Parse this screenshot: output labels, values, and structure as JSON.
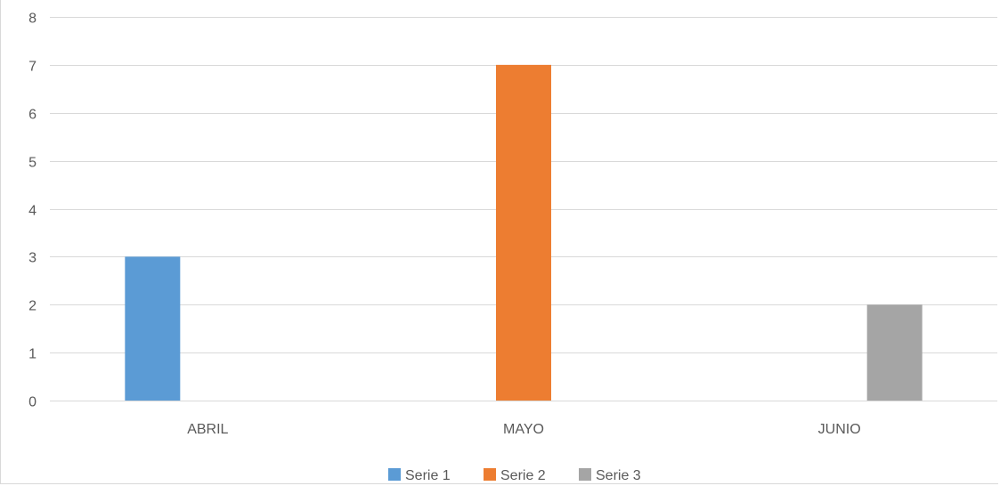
{
  "chart_data": {
    "type": "bar",
    "title": "",
    "xlabel": "",
    "ylabel": "",
    "categories": [
      "ABRIL",
      "MAYO",
      "JUNIO"
    ],
    "series": [
      {
        "name": "Serie 1",
        "color": "#5b9bd5",
        "values": [
          3,
          0,
          0
        ]
      },
      {
        "name": "Serie 2",
        "color": "#ed7d31",
        "values": [
          0,
          7,
          0
        ]
      },
      {
        "name": "Serie 3",
        "color": "#a5a5a5",
        "values": [
          0,
          0,
          2
        ]
      }
    ],
    "ylim": [
      0,
      8
    ],
    "yticks": [
      0,
      1,
      2,
      3,
      4,
      5,
      6,
      7,
      8
    ],
    "grid": true,
    "legend_position": "bottom"
  }
}
